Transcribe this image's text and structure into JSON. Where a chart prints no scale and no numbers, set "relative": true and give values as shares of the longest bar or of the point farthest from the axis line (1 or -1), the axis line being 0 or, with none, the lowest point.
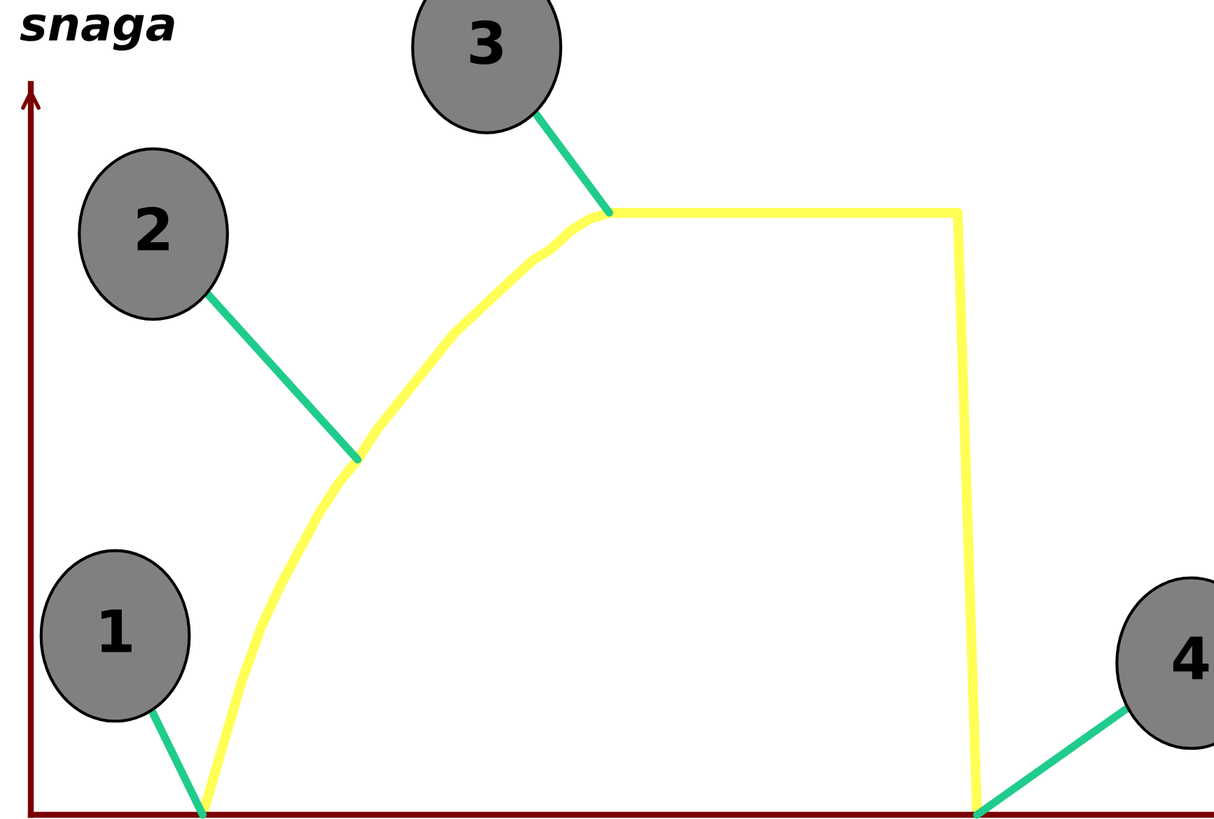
{
  "chart_data": {
    "type": "line",
    "title": "snaga",
    "relative": true,
    "legend": false,
    "marker": "none",
    "line_style": "solid",
    "categories": [
      null,
      null,
      null,
      null,
      null,
      null,
      null,
      null,
      null,
      null,
      null,
      null,
      null,
      null,
      null,
      null,
      null,
      null,
      null,
      null,
      null,
      null,
      null,
      null,
      null,
      null,
      null,
      null,
      null,
      null,
      null,
      null,
      null,
      null,
      null,
      null,
      null,
      null,
      null,
      null,
      null
    ],
    "series": [
      {
        "color": "#ffff55",
        "values": [
          0,
          0.11,
          0.22,
          0.31,
          0.38,
          0.44,
          0.5,
          0.55,
          0.59,
          0.64,
          0.68,
          0.72,
          0.76,
          0.8,
          0.83,
          0.86,
          0.89,
          0.92,
          0.94,
          0.97,
          0.99,
          1,
          1,
          1,
          1,
          1,
          1,
          1,
          1,
          1,
          1,
          1,
          1,
          1,
          1,
          1,
          1,
          1,
          1,
          1,
          0
        ]
      }
    ],
    "annotations": [
      "1",
      "2",
      "3",
      "4"
    ]
  }
}
